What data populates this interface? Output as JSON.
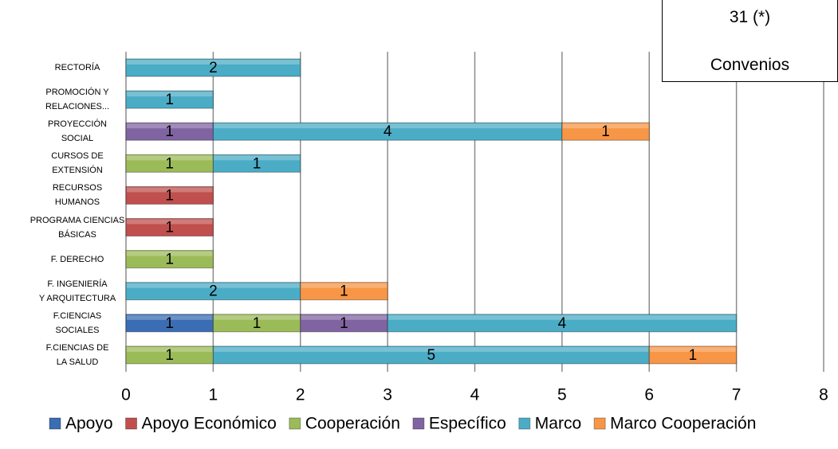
{
  "chart_data": {
    "type": "stacked_barh",
    "annotation": [
      "31 (*)",
      "Convenios"
    ],
    "categories": [
      "RECTORÍA",
      "PROMOCIÓN Y\nRELACIONES...",
      "PROYECCIÓN\nSOCIAL",
      "CURSOS DE\nEXTENSIÓN",
      "RECURSOS\nHUMANOS",
      "PROGRAMA CIENCIAS\nBÁSICAS",
      "F. DERECHO",
      "F. INGENIERÍA\nY ARQUITECTURA",
      "F.CIENCIAS\nSOCIALES",
      "F.CIENCIAS DE\nLA  SALUD"
    ],
    "series": [
      {
        "name": "Apoyo",
        "color": "#3b6db4",
        "values": [
          null,
          null,
          null,
          null,
          null,
          null,
          null,
          null,
          1,
          null
        ]
      },
      {
        "name": "Apoyo Económico",
        "color": "#c0504d",
        "values": [
          null,
          null,
          null,
          null,
          1,
          1,
          null,
          null,
          null,
          null
        ]
      },
      {
        "name": "Cooperación",
        "color": "#9bbb59",
        "values": [
          null,
          null,
          null,
          1,
          null,
          null,
          1,
          null,
          1,
          1
        ]
      },
      {
        "name": "Específico",
        "color": "#8064a2",
        "values": [
          null,
          null,
          1,
          null,
          null,
          null,
          null,
          null,
          1,
          null
        ]
      },
      {
        "name": "Marco",
        "color": "#4bacc6",
        "values": [
          2,
          1,
          4,
          1,
          null,
          null,
          null,
          2,
          4,
          5
        ]
      },
      {
        "name": "Marco Cooperación",
        "color": "#f79646",
        "values": [
          null,
          null,
          1,
          null,
          null,
          null,
          null,
          1,
          null,
          1
        ]
      }
    ],
    "xlim": [
      0,
      8
    ],
    "xticks": [
      0,
      1,
      2,
      3,
      4,
      5,
      6,
      7,
      8
    ],
    "grid": true,
    "legend": "bottom"
  }
}
